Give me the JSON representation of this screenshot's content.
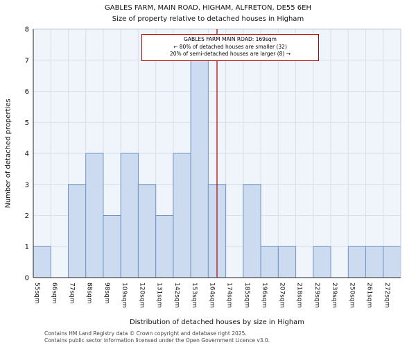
{
  "title": "GABLES FARM, MAIN ROAD, HIGHAM, ALFRETON, DE55 6EH",
  "subtitle": "Size of property relative to detached houses in Higham",
  "chart_data": {
    "type": "bar",
    "categories": [
      "55sqm",
      "66sqm",
      "77sqm",
      "88sqm",
      "98sqm",
      "109sqm",
      "120sqm",
      "131sqm",
      "142sqm",
      "153sqm",
      "164sqm",
      "174sqm",
      "185sqm",
      "196sqm",
      "207sqm",
      "218sqm",
      "229sqm",
      "239sqm",
      "250sqm",
      "261sqm",
      "272sqm"
    ],
    "values": [
      1,
      0,
      3,
      4,
      2,
      4,
      3,
      2,
      4,
      7,
      3,
      0,
      3,
      1,
      1,
      0,
      1,
      0,
      1,
      1,
      1
    ],
    "title": "GABLES FARM, MAIN ROAD, HIGHAM, ALFRETON, DE55 6EH",
    "subtitle": "Size of property relative to detached houses in Higham",
    "xlabel": "Distribution of detached houses by size in Higham",
    "ylabel": "Number of detached properties",
    "ylim": [
      0,
      8
    ],
    "yticks": [
      0,
      1,
      2,
      3,
      4,
      5,
      6,
      7,
      8
    ],
    "grid": true,
    "legend": "none",
    "marker": {
      "value_sqm": 169,
      "label": "GABLES FARM MAIN ROAD: 169sqm"
    },
    "colors": {
      "bar_fill": "#ccdbf0",
      "bar_stroke": "#6f94c4",
      "plot_bg": "#f0f4fb",
      "grid_line": "#d9dfeb",
      "marker_line": "#aa1111",
      "spine": "#222222",
      "box": "#c3cad9"
    }
  },
  "annotation": {
    "line1": "GABLES FARM MAIN ROAD: 169sqm",
    "line2": "← 80% of detached houses are smaller (32)",
    "line3": "20% of semi-detached houses are larger (8) →"
  },
  "footer": {
    "line1": "Contains HM Land Registry data © Crown copyright and database right 2025.",
    "line2": "Contains public sector information licensed under the Open Government Licence v3.0."
  }
}
